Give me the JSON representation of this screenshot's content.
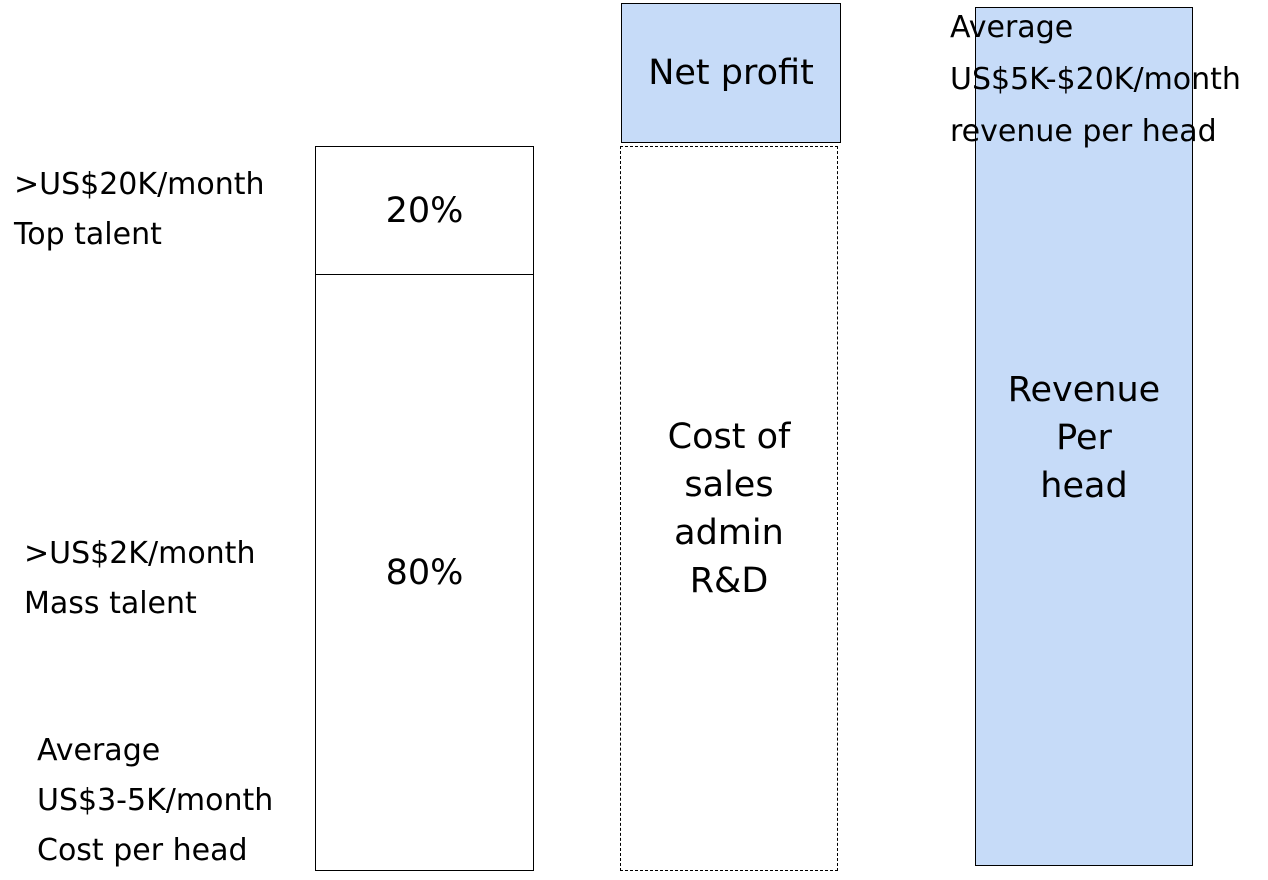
{
  "left_labels": {
    "top_talent": {
      "line1": ">US$20K/month",
      "line2": "Top talent"
    },
    "mass_talent": {
      "line1": ">US$2K/month",
      "line2": "Mass talent"
    },
    "cost_per_head": {
      "line1": "Average",
      "line2": "US$3-5K/month",
      "line3": "Cost per head"
    }
  },
  "cost_column": {
    "top_share": "20%",
    "mass_share": "80%"
  },
  "middle_column": {
    "net_profit": "Net profit",
    "cost_lines": [
      "Cost of",
      "sales",
      "admin",
      "R&D"
    ]
  },
  "revenue_column": {
    "annotation": {
      "line1": "Average",
      "line2": "US$5K-$20K/month",
      "line3": "revenue per head"
    },
    "label_lines": [
      "Revenue",
      "Per",
      "head"
    ]
  },
  "colors": {
    "fill": "#c6dbf8",
    "border": "#000000"
  }
}
